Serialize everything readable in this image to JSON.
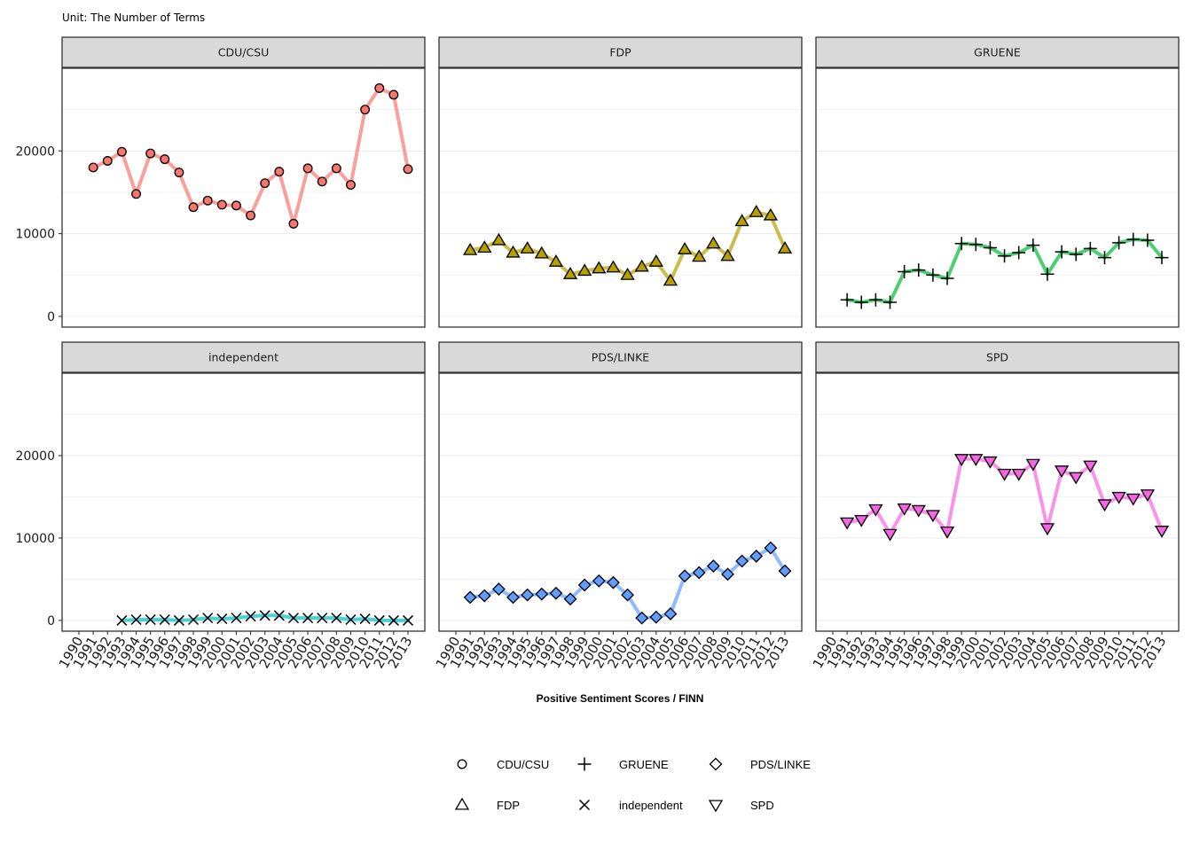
{
  "chart": {
    "subtitle": "Unit: The Number of Terms",
    "xlabel": "Positive Sentiment Scores / FINN"
  },
  "chart_data": {
    "type": "line",
    "layout": "facet grid, 2 rows x 3 columns, shared axes",
    "subtitle": "Unit: The Number of Terms",
    "xlabel": "Positive Sentiment Scores / FINN",
    "ylabel": "",
    "x_ticks": [
      "1990",
      "1991",
      "1992",
      "1993",
      "1994",
      "1995",
      "1996",
      "1997",
      "1998",
      "1999",
      "2000",
      "2001",
      "2002",
      "2003",
      "2004",
      "2005",
      "2006",
      "2007",
      "2008",
      "2009",
      "2010",
      "2011",
      "2012",
      "2013"
    ],
    "y_ticks": [
      0,
      10000,
      20000
    ],
    "ylim": [
      -1300,
      30000
    ],
    "grid": true,
    "legend_position": "bottom",
    "series": [
      {
        "name": "CDU/CSU",
        "color": "#F8766D",
        "shape": "circle",
        "x": [
          1991,
          1992,
          1993,
          1994,
          1995,
          1996,
          1997,
          1998,
          1999,
          2000,
          2001,
          2002,
          2003,
          2004,
          2005,
          2006,
          2007,
          2008,
          2009,
          2010,
          2011,
          2012,
          2013
        ],
        "values": [
          18000,
          18800,
          19900,
          14800,
          19700,
          19000,
          17400,
          13200,
          14000,
          13500,
          13400,
          12200,
          16100,
          17500,
          11200,
          17900,
          16300,
          17900,
          15900,
          25000,
          27600,
          26800,
          17800
        ]
      },
      {
        "name": "FDP",
        "color": "#B79F00",
        "shape": "triangle-up",
        "x": [
          1991,
          1992,
          1993,
          1994,
          1995,
          1996,
          1997,
          1998,
          1999,
          2000,
          2001,
          2002,
          2003,
          2004,
          2005,
          2006,
          2007,
          2008,
          2009,
          2010,
          2011,
          2012,
          2013
        ],
        "values": [
          8000,
          8300,
          9200,
          7700,
          8200,
          7600,
          6600,
          5100,
          5500,
          5800,
          5900,
          5000,
          6000,
          6600,
          4300,
          8100,
          7200,
          8800,
          7300,
          11500,
          12600,
          12200,
          8200
        ]
      },
      {
        "name": "GRUENE",
        "color": "#00BA38",
        "shape": "plus",
        "x": [
          1991,
          1992,
          1993,
          1994,
          1995,
          1996,
          1997,
          1998,
          1999,
          2000,
          2001,
          2002,
          2003,
          2004,
          2005,
          2006,
          2007,
          2008,
          2009,
          2010,
          2011,
          2012,
          2013
        ],
        "values": [
          2000,
          1700,
          2000,
          1700,
          5400,
          5600,
          5000,
          4600,
          8800,
          8700,
          8300,
          7300,
          7700,
          8600,
          5100,
          7800,
          7500,
          8200,
          7100,
          8900,
          9300,
          9200,
          7100
        ]
      },
      {
        "name": "independent",
        "color": "#00BFC4",
        "shape": "cross",
        "x": [
          1993,
          1994,
          1995,
          1996,
          1997,
          1998,
          1999,
          2000,
          2001,
          2002,
          2003,
          2004,
          2005,
          2006,
          2007,
          2008,
          2009,
          2010,
          2011,
          2012,
          2013
        ],
        "values": [
          0,
          100,
          100,
          100,
          0,
          100,
          300,
          200,
          300,
          500,
          600,
          600,
          300,
          300,
          300,
          300,
          100,
          200,
          0,
          0,
          0
        ]
      },
      {
        "name": "PDS/LINKE",
        "color": "#619CFF",
        "shape": "diamond",
        "x": [
          1991,
          1992,
          1993,
          1994,
          1995,
          1996,
          1997,
          1998,
          1999,
          2000,
          2001,
          2002,
          2003,
          2004,
          2005,
          2006,
          2007,
          2008,
          2009,
          2010,
          2011,
          2012,
          2013
        ],
        "values": [
          2800,
          3000,
          3800,
          2800,
          3100,
          3200,
          3300,
          2600,
          4300,
          4800,
          4600,
          3100,
          300,
          400,
          800,
          5400,
          5800,
          6600,
          5600,
          7200,
          7800,
          8800,
          6000
        ]
      },
      {
        "name": "SPD",
        "color": "#F564E3",
        "shape": "triangle-down",
        "x": [
          1991,
          1992,
          1993,
          1994,
          1995,
          1996,
          1997,
          1998,
          1999,
          2000,
          2001,
          2002,
          2003,
          2004,
          2005,
          2006,
          2007,
          2008,
          2009,
          2010,
          2011,
          2012,
          2013
        ],
        "values": [
          11900,
          12200,
          13500,
          10500,
          13600,
          13400,
          12800,
          10800,
          19600,
          19600,
          19300,
          17800,
          17800,
          19000,
          11200,
          18200,
          17400,
          18800,
          14100,
          15000,
          14800,
          15300,
          10900
        ]
      }
    ]
  }
}
